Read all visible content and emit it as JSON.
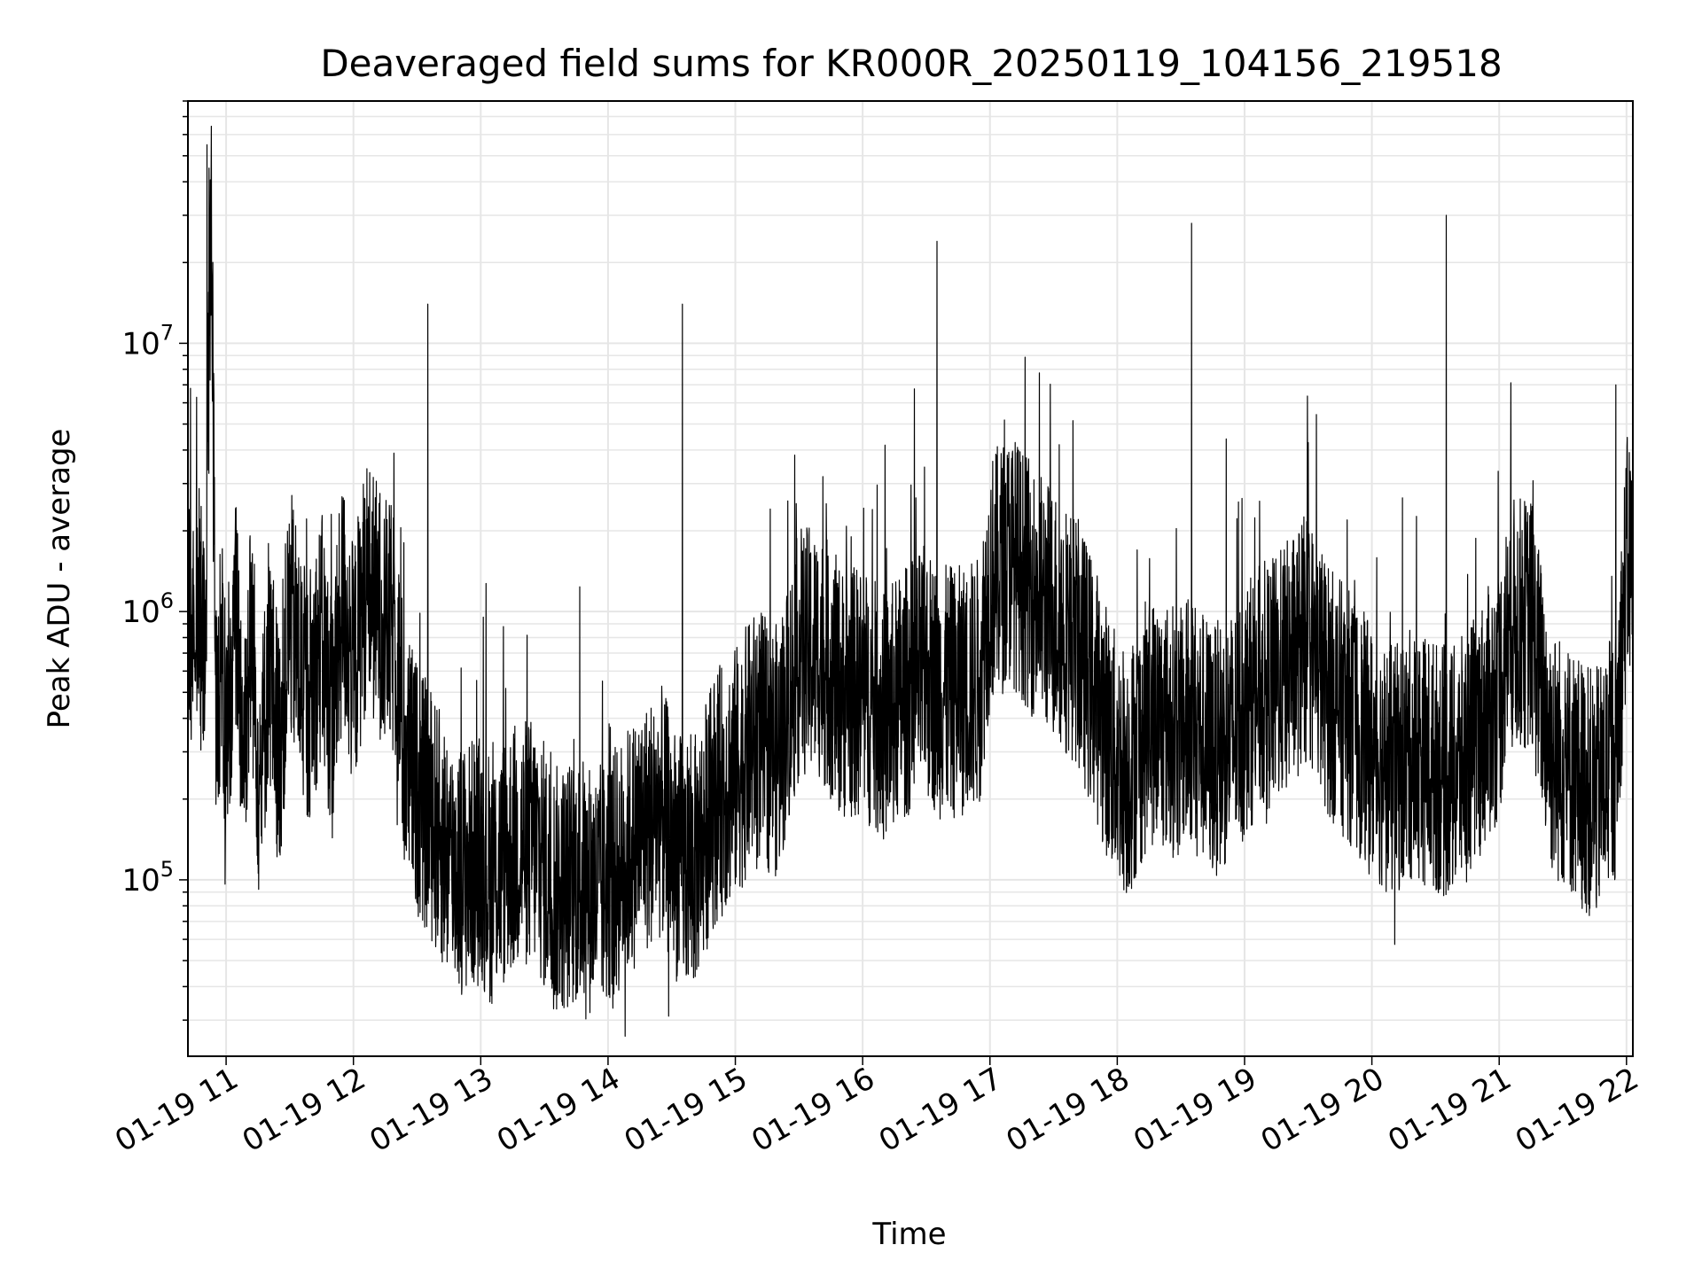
{
  "chart_data": {
    "type": "line",
    "title": "Deaveraged field sums for KR000R_20250119_104156_219518",
    "xlabel": "Time",
    "ylabel": "Peak ADU - average",
    "yscale": "log",
    "grid": true,
    "x_axis": {
      "type": "time",
      "min": "2025-01-19 10:42",
      "max": "2025-01-19 22:03",
      "ticks": [
        "01-19 11",
        "01-19 12",
        "01-19 13",
        "01-19 14",
        "01-19 15",
        "01-19 16",
        "01-19 17",
        "01-19 18",
        "01-19 19",
        "01-19 20",
        "01-19 21",
        "01-19 22"
      ],
      "tick_hours": [
        11,
        12,
        13,
        14,
        15,
        16,
        17,
        18,
        19,
        20,
        21,
        22
      ]
    },
    "y_axis": {
      "min": 22000,
      "max": 80000000,
      "ticks": [
        {
          "value": 100000,
          "base": "10",
          "exp": "5"
        },
        {
          "value": 1000000,
          "base": "10",
          "exp": "6"
        },
        {
          "value": 10000000,
          "base": "10",
          "exp": "7"
        }
      ]
    },
    "series": [
      {
        "color": "#000000",
        "x": [
          "10:42",
          "10:47",
          "10:50",
          "10:53",
          "10:55",
          "10:58",
          "11:00",
          "11:05",
          "11:08",
          "11:12",
          "11:16",
          "11:20",
          "11:25",
          "11:30",
          "11:38",
          "11:45",
          "11:50",
          "11:55",
          "12:00",
          "12:06",
          "12:10",
          "12:15",
          "12:20",
          "12:24",
          "12:28",
          "12:32",
          "12:36",
          "12:40",
          "12:46",
          "12:52",
          "13:00",
          "13:05",
          "13:15",
          "13:25",
          "13:35",
          "13:45",
          "13:55",
          "14:05",
          "14:15",
          "14:25",
          "14:33",
          "14:40",
          "14:50",
          "15:00",
          "15:10",
          "15:20",
          "15:30",
          "15:40",
          "15:50",
          "16:00",
          "16:10",
          "16:20",
          "16:30",
          "16:36",
          "16:45",
          "16:55",
          "17:00",
          "17:10",
          "17:20",
          "17:30",
          "17:40",
          "17:50",
          "17:58",
          "18:05",
          "18:15",
          "18:30",
          "18:35",
          "18:45",
          "18:55",
          "19:05",
          "19:15",
          "19:30",
          "19:40",
          "19:50",
          "20:00",
          "20:10",
          "20:20",
          "20:35",
          "20:40",
          "20:50",
          "21:00",
          "21:05",
          "21:15",
          "21:25",
          "21:35",
          "21:45",
          "21:55",
          "22:00",
          "22:03"
        ],
        "y": [
          900000,
          1100000,
          600000,
          40000000,
          400000,
          800000,
          350000,
          1000000,
          300000,
          900000,
          200000,
          700000,
          300000,
          1000000,
          450000,
          800000,
          400000,
          1100000,
          600000,
          1300000,
          1100000,
          900000,
          800000,
          300000,
          250000,
          200000,
          180000,
          150000,
          120000,
          110000,
          120000,
          100000,
          130000,
          140000,
          90000,
          100000,
          90000,
          110000,
          150000,
          180000,
          120000,
          110000,
          200000,
          250000,
          350000,
          300000,
          700000,
          700000,
          500000,
          500000,
          400000,
          500000,
          600000,
          500000,
          500000,
          550000,
          1300000,
          1600000,
          1200000,
          1000000,
          800000,
          500000,
          300000,
          250000,
          400000,
          350000,
          400000,
          300000,
          350000,
          500000,
          550000,
          800000,
          500000,
          400000,
          300000,
          250000,
          300000,
          250000,
          250000,
          350000,
          500000,
          900000,
          900000,
          300000,
          250000,
          200000,
          300000,
          1500000,
          1600000
        ]
      }
    ],
    "spikes": [
      {
        "x": "10:51",
        "y": 55000000
      },
      {
        "x": "10:52",
        "y": 45000000
      },
      {
        "x": "12:35",
        "y": 14000000
      },
      {
        "x": "14:35",
        "y": 14000000
      },
      {
        "x": "16:35",
        "y": 24000000
      },
      {
        "x": "18:35",
        "y": 28000000
      },
      {
        "x": "20:35",
        "y": 30000000
      },
      {
        "x": "21:55",
        "y": 7000000
      }
    ]
  }
}
